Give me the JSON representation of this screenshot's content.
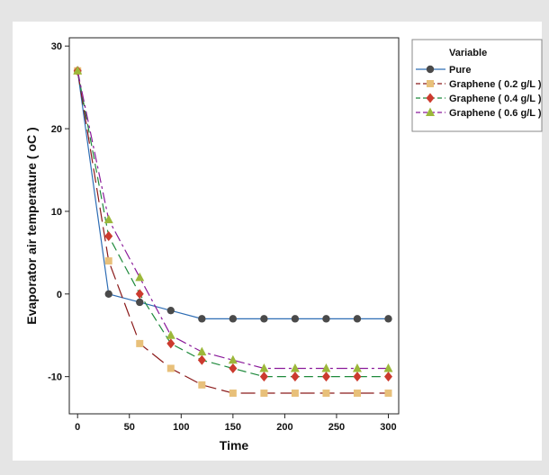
{
  "chart_data": {
    "type": "line",
    "xlabel": "Time",
    "ylabel": "Evaporator air temperature ( oC )",
    "xlim": [
      -8,
      310
    ],
    "ylim": [
      -14.5,
      31
    ],
    "xticks": [
      0,
      50,
      100,
      150,
      200,
      250,
      300
    ],
    "yticks": [
      30,
      20,
      10,
      0,
      -10
    ],
    "x": [
      0,
      30,
      60,
      90,
      120,
      150,
      180,
      210,
      240,
      270,
      300
    ],
    "legend_title": "Variable",
    "legend_position": "right",
    "series": [
      {
        "name": "Pure",
        "color": "#2e6db4",
        "marker_color": "#4a4a4a",
        "marker": "circle",
        "dash": "solid",
        "values": [
          27,
          0,
          -1,
          -2,
          -3,
          -3,
          -3,
          -3,
          -3,
          -3,
          -3
        ]
      },
      {
        "name": "Graphene ( 0.2 g/L )",
        "color": "#8b1a1a",
        "marker_color": "#e8c07a",
        "marker": "square",
        "dash": "long",
        "values": [
          27,
          4,
          -6,
          -9,
          -11,
          -12,
          -12,
          -12,
          -12,
          -12,
          -12
        ]
      },
      {
        "name": "Graphene ( 0.4 g/L )",
        "color": "#1f8a3c",
        "marker_color": "#cc3a2e",
        "marker": "diamond",
        "dash": "medium",
        "values": [
          27,
          7,
          0,
          -6,
          -8,
          -9,
          -10,
          -10,
          -10,
          -10,
          -10
        ]
      },
      {
        "name": "Graphene ( 0.6 g/L )",
        "color": "#8a1a9a",
        "marker_color": "#9cb83a",
        "marker": "triangle",
        "dash": "dashdot",
        "values": [
          27,
          9,
          2,
          -5,
          -7,
          -8,
          -9,
          -9,
          -9,
          -9,
          -9
        ]
      }
    ]
  }
}
